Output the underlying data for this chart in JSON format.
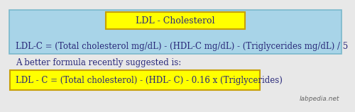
{
  "bg_top": "#a8d4e8",
  "bg_bottom": "#e8e8e8",
  "yellow_fill": "#ffff00",
  "yellow_border": "#c8a000",
  "blue_border": "#7ab8cc",
  "title": "LDL - Cholesterol",
  "formula1": "LDL-C = (Total cholesterol mg/dL) - (HDL-C mg/dL) - (Triglycerides mg/dL) / 5",
  "subtitle": "A better formula recently suggested is:",
  "formula2": "LDL - C = (Total cholesterol) - (HDL- C) - 0.16 x (Triglycerides)",
  "watermark": "labpedia.net",
  "title_fontsize": 9.0,
  "formula1_fontsize": 8.5,
  "subtitle_fontsize": 8.5,
  "formula2_fontsize": 8.5,
  "watermark_fontsize": 6.5,
  "text_color": "#2a2a7a",
  "watermark_color": "#666666"
}
